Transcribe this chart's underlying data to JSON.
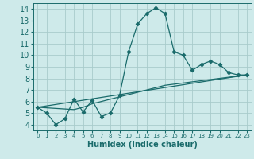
{
  "xlabel": "Humidex (Indice chaleur)",
  "bg_color": "#ceeaea",
  "grid_color": "#a8cccc",
  "line_color": "#1a6b6b",
  "xlim": [
    -0.5,
    23.5
  ],
  "ylim": [
    3.5,
    14.5
  ],
  "xticks": [
    0,
    1,
    2,
    3,
    4,
    5,
    6,
    7,
    8,
    9,
    10,
    11,
    12,
    13,
    14,
    15,
    16,
    17,
    18,
    19,
    20,
    21,
    22,
    23
  ],
  "yticks": [
    4,
    5,
    6,
    7,
    8,
    9,
    10,
    11,
    12,
    13,
    14
  ],
  "curve1_x": [
    0,
    1,
    2,
    3,
    4,
    5,
    6,
    7,
    8,
    9,
    10,
    11,
    12,
    13,
    14,
    15,
    16,
    17,
    18,
    19,
    20,
    21,
    22,
    23
  ],
  "curve1_y": [
    5.5,
    5.0,
    4.0,
    4.5,
    6.2,
    5.1,
    6.1,
    4.7,
    5.0,
    6.5,
    10.3,
    12.7,
    13.6,
    14.1,
    13.6,
    10.3,
    10.0,
    8.7,
    9.2,
    9.5,
    9.2,
    8.5,
    8.3,
    8.3
  ],
  "curve2_x": [
    0,
    4,
    5,
    6,
    7,
    8,
    9,
    10,
    11,
    12,
    13,
    14,
    15,
    16,
    17,
    18,
    19,
    20,
    21,
    22,
    23
  ],
  "curve2_y": [
    5.5,
    5.3,
    5.5,
    5.8,
    6.0,
    6.2,
    6.4,
    6.6,
    6.8,
    7.0,
    7.2,
    7.4,
    7.5,
    7.6,
    7.7,
    7.8,
    7.9,
    8.0,
    8.1,
    8.2,
    8.3
  ],
  "curve3_x": [
    0,
    23
  ],
  "curve3_y": [
    5.5,
    8.3
  ],
  "fontsize_xlabel": 7,
  "fontsize_ticks_x": 5,
  "fontsize_ticks_y": 7
}
